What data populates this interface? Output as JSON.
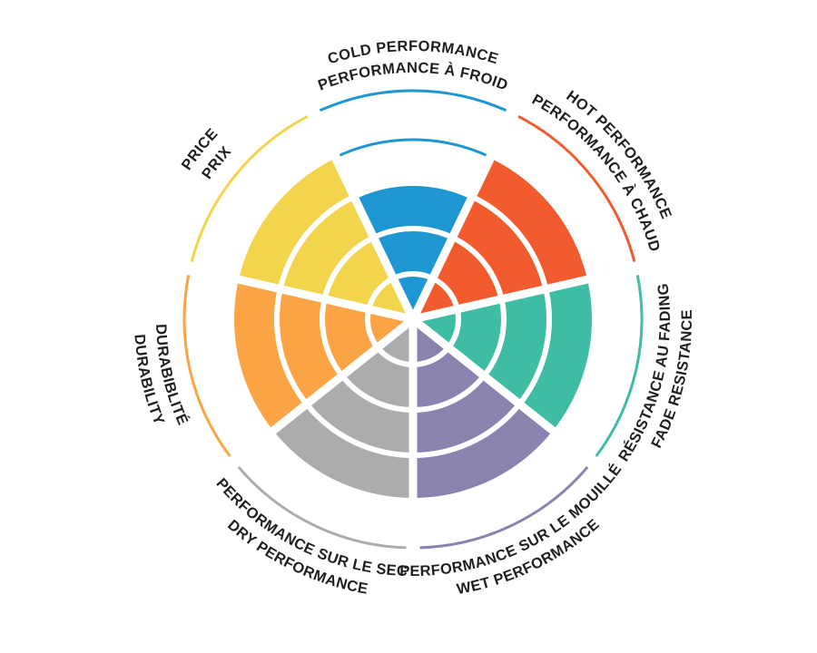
{
  "figure": {
    "description": "Seven-spoke polar rating wheel comparing brake performance attributes, bilingual English/French labels curved around the rim",
    "background_color": "#ffffff",
    "text_color": "#231f20"
  },
  "chart_data": {
    "type": "bar",
    "polar": true,
    "title": "",
    "legend": "none",
    "grid": "white concentric rings over filled sectors",
    "scale": {
      "min": 0,
      "max": 5,
      "ring_values": [
        1,
        2,
        3,
        4,
        5
      ]
    },
    "outer_arc_ring": 5,
    "segments": [
      {
        "id": "cold",
        "label_en": "COLD PERFORMANCE",
        "label_fr": "PERFORMANCE À FROID",
        "value": 3,
        "extra_arc_ring": 4,
        "color": "#1e96d2"
      },
      {
        "id": "hot",
        "label_en": "HOT PERFORMANCE",
        "label_fr": "PERFORMANCE À CHAUD",
        "value": 4,
        "extra_arc_ring": 0,
        "color": "#f15b2e"
      },
      {
        "id": "fade",
        "label_en": "FADE RESISTANCE",
        "label_fr": "RÉSISTANCE AU FADING",
        "value": 4,
        "extra_arc_ring": 0,
        "color": "#3fbda4"
      },
      {
        "id": "wet",
        "label_en": "WET PERFORMANCE",
        "label_fr": "PERFORMANCE SUR LE MOUILLÉ",
        "value": 4,
        "extra_arc_ring": 0,
        "color": "#8983af"
      },
      {
        "id": "dry",
        "label_en": "DRY PERFORMANCE",
        "label_fr": "PERFORMANCE SUR LE SEC",
        "value": 4,
        "extra_arc_ring": 0,
        "color": "#aaacae"
      },
      {
        "id": "durability",
        "label_en": "DURABILITY",
        "label_fr": "DURABIBLITÉ",
        "value": 4,
        "extra_arc_ring": 0,
        "color": "#faa445"
      },
      {
        "id": "price",
        "label_en": "PRICE",
        "label_fr": "PRIX",
        "value": 4,
        "extra_arc_ring": 0,
        "color": "#f2d54c"
      }
    ]
  }
}
